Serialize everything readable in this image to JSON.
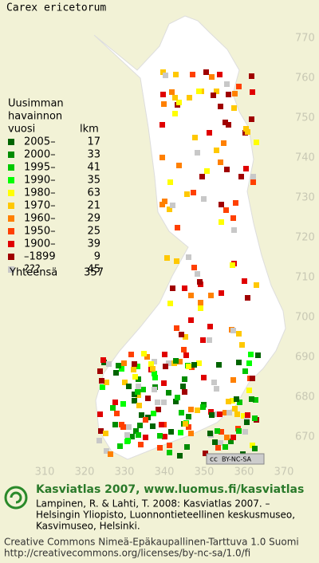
{
  "title": "Carex ericetorum",
  "legend": {
    "heading": [
      "Uusimman",
      "havainnon"
    ],
    "columns": [
      "vuosi",
      "lkm"
    ],
    "rows": [
      {
        "label": "2005–",
        "count": 17,
        "color": "#006400"
      },
      {
        "label": "2000–",
        "count": 33,
        "color": "#008c00"
      },
      {
        "label": "1995–",
        "count": 41,
        "color": "#00c800"
      },
      {
        "label": "1990–",
        "count": 35,
        "color": "#00ff00"
      },
      {
        "label": "1980–",
        "count": 63,
        "color": "#ffff00"
      },
      {
        "label": "1970–",
        "count": 21,
        "color": "#ffc800"
      },
      {
        "label": "1960–",
        "count": 29,
        "color": "#ff8000"
      },
      {
        "label": "1950–",
        "count": 25,
        "color": "#ff4000"
      },
      {
        "label": "1900–",
        "count": 39,
        "color": "#e00000"
      },
      {
        "label": "–1899",
        "count": 9,
        "color": "#a00000"
      },
      {
        "label": "???",
        "count": 45,
        "color": "#c8c8c8"
      }
    ],
    "total": {
      "label": "Yhteensä",
      "count": 357
    }
  },
  "axes": {
    "x": [
      "310",
      "320",
      "330",
      "340",
      "350",
      "360",
      "370"
    ],
    "y": [
      "770",
      "760",
      "750",
      "740",
      "730",
      "720",
      "710",
      "700",
      "690",
      "680",
      "670"
    ]
  },
  "license_badge": "BY-NC-SA",
  "footer": {
    "heading": "Kasviatlas 2007, www.luomus.fi/kasviatlas",
    "citation": [
      "Lampinen, R. & Lahti, T. 2008: Kasviatlas 2007. –",
      "Helsingin Yliopisto, Luonnontieteellinen keskusmuseo,",
      "Kasvimuseo, Helsinki."
    ],
    "license": [
      "Creative Commons Nimeä-Epäkaupallinen-Tarttuva 1.0 Suomi",
      "http://creativecommons.org/licenses/by-nc-sa/1.0/fi"
    ]
  }
}
